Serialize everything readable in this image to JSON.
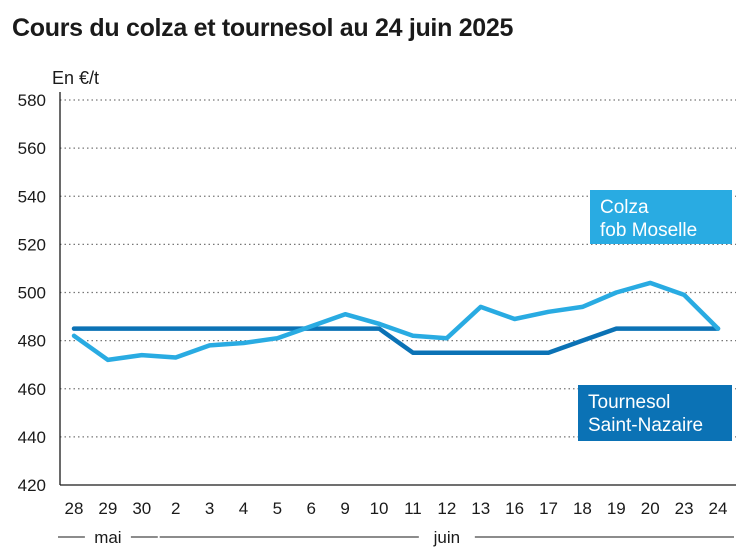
{
  "title": "Cours du colza et tournesol au 24 juin 2025",
  "chart_data": {
    "type": "line",
    "title": "Cours du colza et tournesol au 24 juin 2025",
    "ylabel": "En €/t",
    "ylim": [
      420,
      580
    ],
    "yticks": [
      "420",
      "440",
      "460",
      "480",
      "500",
      "520",
      "540",
      "560",
      "580"
    ],
    "grid": true,
    "categories": [
      "28",
      "29",
      "30",
      "2",
      "3",
      "4",
      "5",
      "6",
      "9",
      "10",
      "11",
      "12",
      "13",
      "16",
      "17",
      "18",
      "19",
      "20",
      "23",
      "24"
    ],
    "month_groups": [
      {
        "label": "mai",
        "from": 0,
        "to": 2
      },
      {
        "label": "juin",
        "from": 3,
        "to": 19
      }
    ],
    "series": [
      {
        "name": "Colza fob Moselle",
        "label_lines": [
          "Colza",
          "fob Moselle"
        ],
        "color": "#29abe2",
        "values": [
          482,
          472,
          474,
          473,
          478,
          479,
          481,
          486,
          491,
          487,
          482,
          481,
          494,
          489,
          492,
          494,
          500,
          504,
          499,
          485
        ]
      },
      {
        "name": "Tournesol Saint-Nazaire",
        "label_lines": [
          "Tournesol",
          "Saint-Nazaire"
        ],
        "color": "#0b72b5",
        "values": [
          485,
          485,
          485,
          485,
          485,
          485,
          485,
          485,
          485,
          485,
          475,
          475,
          475,
          475,
          475,
          480,
          485,
          485,
          485,
          485
        ]
      }
    ]
  }
}
